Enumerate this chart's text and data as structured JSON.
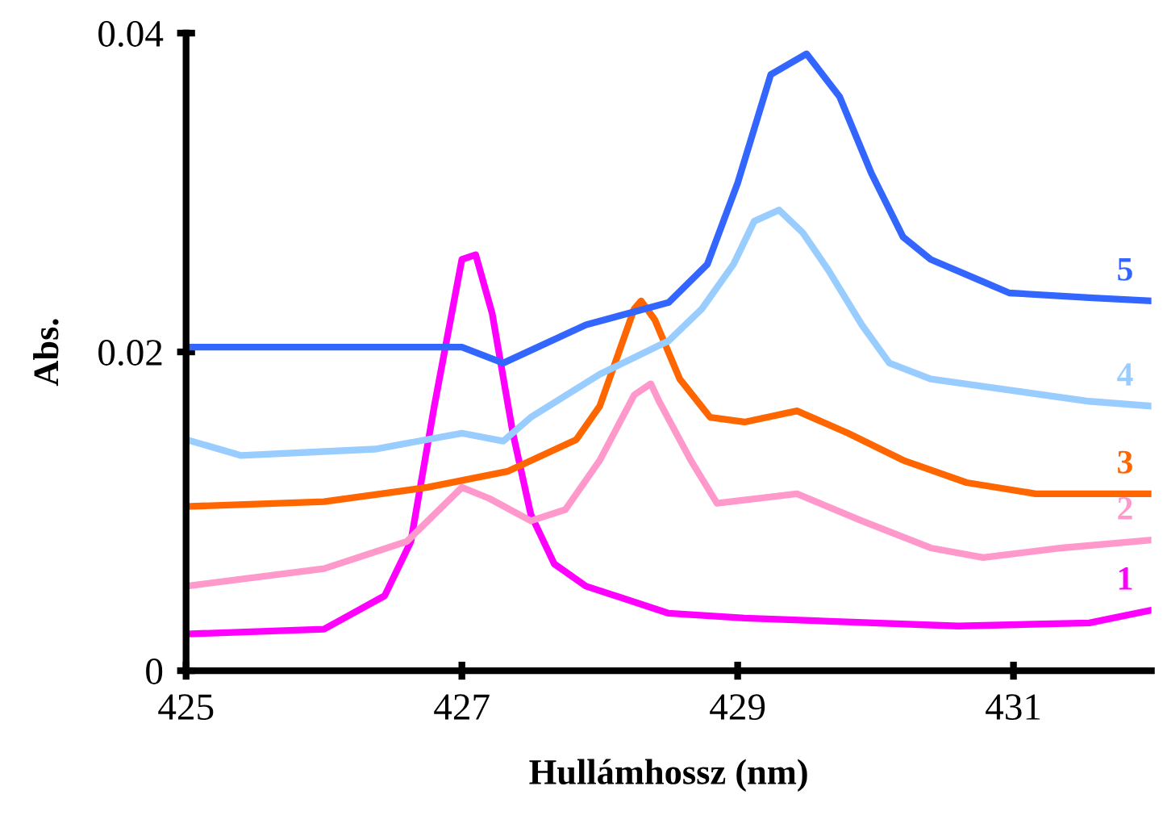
{
  "chart_data": {
    "type": "line",
    "xlabel": "Hullámhossz (nm)",
    "ylabel": "Abs.",
    "xlim": [
      425,
      432
    ],
    "xticks": [
      425,
      427,
      429,
      431
    ],
    "ylim": [
      0,
      0.04
    ],
    "yticks": [
      0,
      0.02,
      0.04
    ],
    "grid": false,
    "legend": false,
    "marker": "none",
    "line_style": "solid",
    "series": [
      {
        "name": "1",
        "color": "#ff00ff",
        "x": [
          425,
          426,
          426.44,
          426.63,
          426.8,
          427,
          427.1,
          427.22,
          427.37,
          427.5,
          427.67,
          427.9,
          428.5,
          429.05,
          430.6,
          431.55,
          432
        ],
        "values": [
          0.0023,
          0.0026,
          0.0047,
          0.0081,
          0.0166,
          0.0258,
          0.0261,
          0.0224,
          0.0149,
          0.0098,
          0.0067,
          0.0053,
          0.0036,
          0.0033,
          0.0028,
          0.003,
          0.0038
        ]
      },
      {
        "name": "2",
        "color": "#ff99cc",
        "x": [
          425,
          426,
          426.6,
          427,
          427.2,
          427.5,
          427.75,
          428,
          428.25,
          428.37,
          428.43,
          428.66,
          428.85,
          429.43,
          429.9,
          430.4,
          430.78,
          431.35,
          432
        ],
        "values": [
          0.0053,
          0.0064,
          0.0081,
          0.0115,
          0.0108,
          0.0094,
          0.0101,
          0.0132,
          0.0173,
          0.018,
          0.0169,
          0.0132,
          0.0105,
          0.0111,
          0.0094,
          0.0077,
          0.0071,
          0.0077,
          0.0082
        ]
      },
      {
        "name": "3",
        "color": "#ff6600",
        "x": [
          425,
          426,
          426.75,
          427.33,
          427.83,
          428,
          428.25,
          428.3,
          428.4,
          428.58,
          428.8,
          429.05,
          429.43,
          429.8,
          430.2,
          430.66,
          431.16,
          432
        ],
        "values": [
          0.0103,
          0.0106,
          0.0115,
          0.0125,
          0.0145,
          0.0166,
          0.0227,
          0.0232,
          0.022,
          0.0183,
          0.0159,
          0.0156,
          0.0163,
          0.0149,
          0.0132,
          0.0118,
          0.0111,
          0.0111
        ]
      },
      {
        "name": "4",
        "color": "#99ccff",
        "x": [
          425,
          425.4,
          426.37,
          427,
          427.3,
          427.5,
          428,
          428.5,
          428.74,
          428.97,
          429.12,
          429.3,
          429.47,
          429.66,
          429.9,
          430.1,
          430.4,
          430.97,
          431.55,
          432
        ],
        "values": [
          0.0145,
          0.0135,
          0.0139,
          0.0149,
          0.0144,
          0.0159,
          0.0186,
          0.0207,
          0.0227,
          0.0255,
          0.0282,
          0.0289,
          0.0275,
          0.0251,
          0.0217,
          0.0193,
          0.0183,
          0.0176,
          0.0169,
          0.0166
        ]
      },
      {
        "name": "5",
        "color": "#3366ff",
        "x": [
          425,
          427,
          427.3,
          427.9,
          428.5,
          428.78,
          429,
          429.24,
          429.5,
          429.74,
          429.97,
          430.2,
          430.4,
          430.78,
          430.97,
          431.55,
          432
        ],
        "values": [
          0.0203,
          0.0203,
          0.0193,
          0.0217,
          0.0231,
          0.0255,
          0.0306,
          0.0374,
          0.0387,
          0.036,
          0.0312,
          0.0272,
          0.0258,
          0.0244,
          0.0237,
          0.0234,
          0.0232
        ]
      }
    ]
  }
}
